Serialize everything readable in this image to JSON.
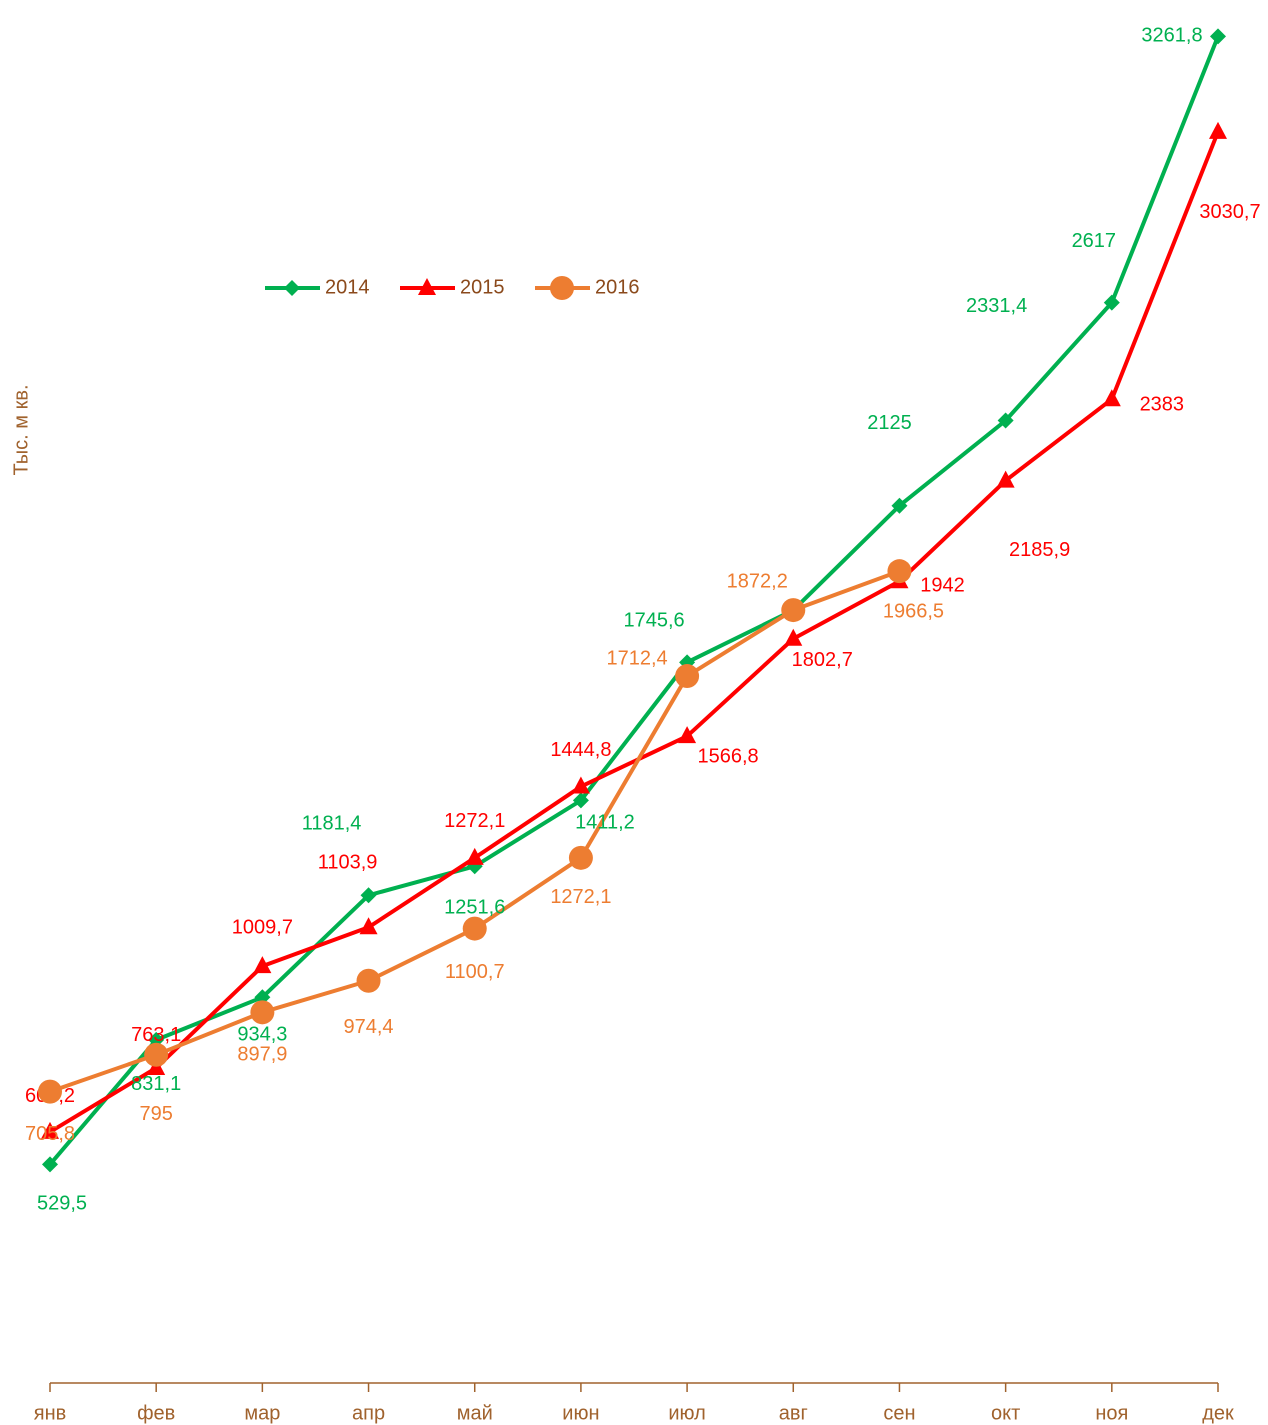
{
  "chart_data": {
    "type": "line",
    "y_label": "Тыс. м кв.",
    "categories": [
      "янв",
      "фев",
      "мар",
      "апр",
      "май",
      "июн",
      "июл",
      "авг",
      "сен",
      "окт",
      "ноя",
      "дек"
    ],
    "ylim": [
      0,
      3350
    ],
    "legend": "top-left",
    "series": [
      {
        "name": "2014",
        "color": "#00B050",
        "marker": "diamond",
        "values": [
          529.5,
          831.1,
          934.3,
          1181.4,
          1251.6,
          1411.2,
          1745.6,
          1872,
          2125,
          2331.4,
          2617,
          3261.8
        ],
        "value_labels": [
          "529,5",
          "831,1",
          "934,3",
          "1181,4",
          "1251,6",
          "1411,2",
          "1745,6",
          null,
          "2125",
          "2331,4",
          "2617",
          "3261,8"
        ]
      },
      {
        "name": "2015",
        "color": "#FF0000",
        "marker": "triangle",
        "values": [
          608.2,
          763.1,
          1009.7,
          1103.9,
          1272.1,
          1444.8,
          1566.8,
          1802.7,
          1942,
          2185.9,
          2383,
          3030.7
        ],
        "value_labels": [
          "608,2",
          "763,1",
          "1009,7",
          "1103,9",
          "1272,1",
          "1444,8",
          "1566,8",
          "1802,7",
          "1942",
          "2185,9",
          "2383",
          "3030,7"
        ]
      },
      {
        "name": "2016",
        "color": "#ED7D31",
        "marker": "circle",
        "values": [
          705.8,
          795,
          897.9,
          974.4,
          1100.7,
          1272.1,
          1712.4,
          1872.2,
          1966.5,
          null,
          null,
          null
        ],
        "value_labels": [
          "705,8",
          "795",
          "897,9",
          "974,4",
          "1100,7",
          "1272,1",
          "1712,4",
          "1872,2",
          "1966,5",
          null,
          null,
          null
        ]
      }
    ]
  }
}
